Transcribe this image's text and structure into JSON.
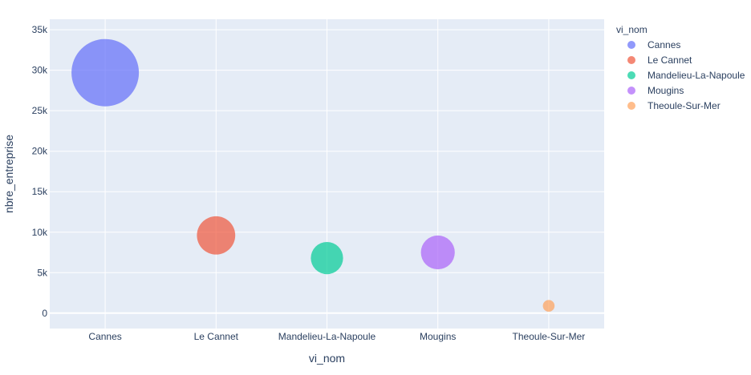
{
  "chart_data": {
    "type": "scatter",
    "title": "",
    "xlabel": "vi_nom",
    "ylabel": "nbre_entreprise",
    "categories": [
      "Cannes",
      "Le Cannet",
      "Mandelieu-La-Napoule",
      "Mougins",
      "Theoule-Sur-Mer"
    ],
    "y_ticks": [
      0,
      5000,
      10000,
      15000,
      20000,
      25000,
      30000,
      35000
    ],
    "y_tick_labels": [
      "0",
      "5k",
      "10k",
      "15k",
      "20k",
      "25k",
      "30k",
      "35k"
    ],
    "ylim": [
      -1900,
      36300
    ],
    "grid": true,
    "legend": {
      "title": "vi_nom",
      "placement": "right"
    },
    "series": [
      {
        "name": "Cannes",
        "x": "Cannes",
        "value": 29700,
        "size": 29700,
        "color": "#636efa"
      },
      {
        "name": "Le Cannet",
        "x": "Le Cannet",
        "value": 9600,
        "size": 9600,
        "color": "#EF553B"
      },
      {
        "name": "Mandelieu-La-Napoule",
        "x": "Mandelieu-La-Napoule",
        "value": 6800,
        "size": 6800,
        "color": "#00cc96"
      },
      {
        "name": "Mougins",
        "x": "Mougins",
        "value": 7500,
        "size": 7500,
        "color": "#ab63fa"
      },
      {
        "name": "Theoule-Sur-Mer",
        "x": "Theoule-Sur-Mer",
        "value": 900,
        "size": 900,
        "color": "#FFA15A"
      }
    ]
  }
}
